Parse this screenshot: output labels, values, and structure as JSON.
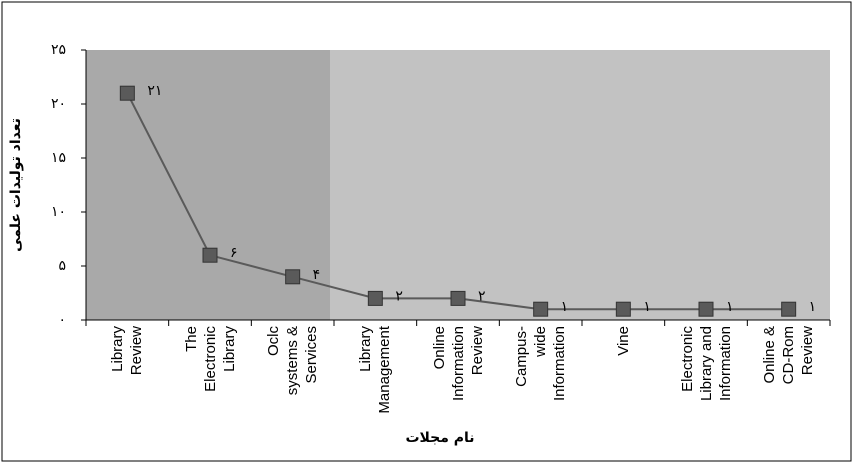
{
  "chart_data": {
    "type": "line",
    "x_label": "نام مجلات",
    "y_label": "تعداد تولیدات علمی",
    "categories": [
      "Library Review",
      "The Electronic Library",
      "Oclc systems & Services",
      "Library Management",
      "Online Information Review",
      "Campus-wide Information",
      "Vine",
      "Electronic Library and Information",
      "Online & CD-Rom Review"
    ],
    "series": [
      {
        "name": null,
        "color": "#5a5a5a",
        "values": [
          21,
          6,
          4,
          2,
          2,
          1,
          1,
          1,
          1
        ],
        "value_labels": [
          "۲۱",
          "۶",
          "۴",
          "۲",
          "۲",
          "۱",
          "۱",
          "۱",
          "۱"
        ]
      }
    ],
    "ylim": [
      0,
      25
    ],
    "yticks": [
      {
        "value": 0,
        "label": "۰"
      },
      {
        "value": 5,
        "label": "۵"
      },
      {
        "value": 10,
        "label": "۱۰"
      },
      {
        "value": 15,
        "label": "۱۵"
      },
      {
        "value": 20,
        "label": "۲۰"
      },
      {
        "value": 25,
        "label": "۲۵"
      }
    ],
    "grid": false
  }
}
